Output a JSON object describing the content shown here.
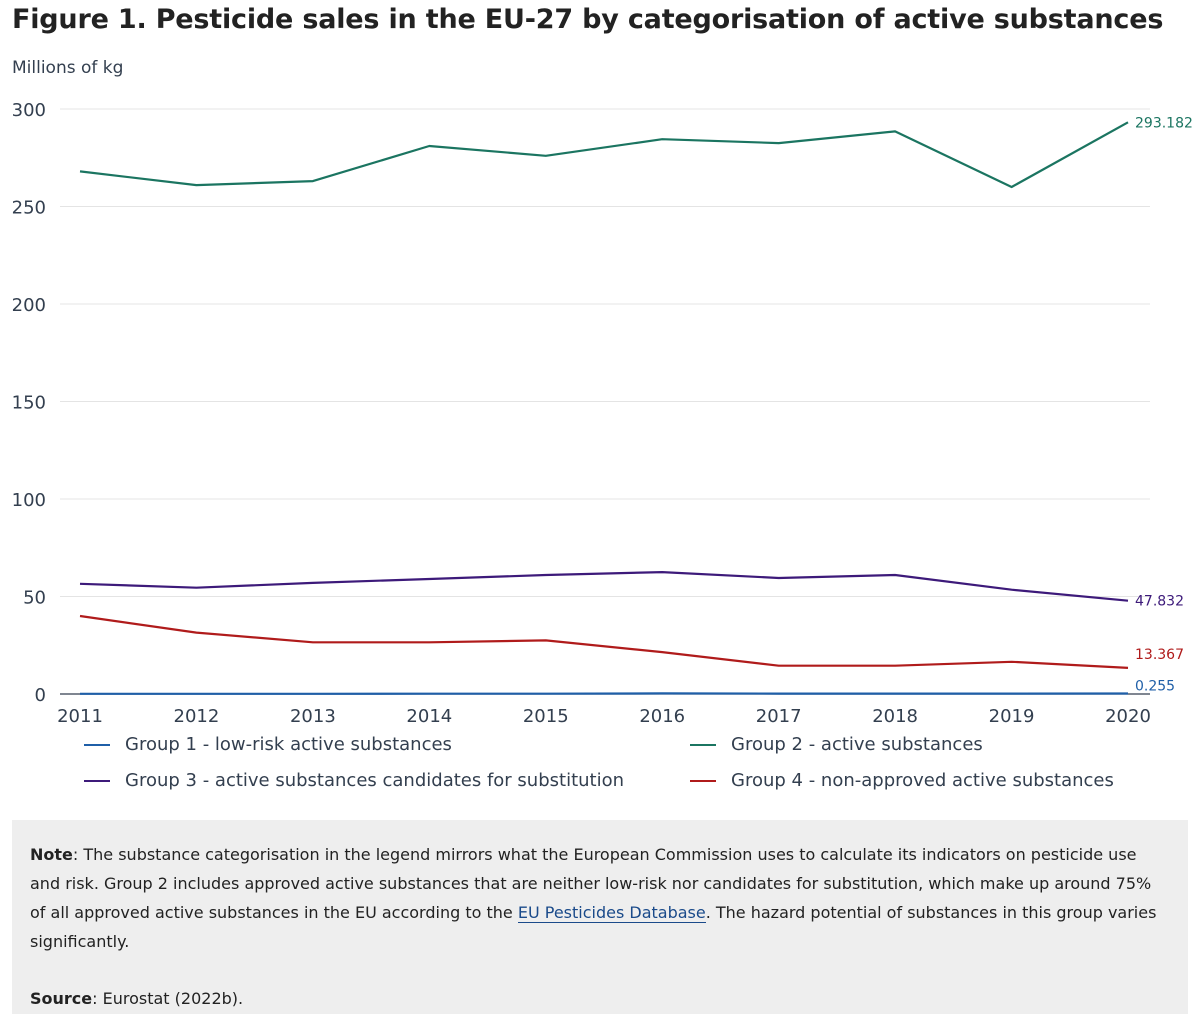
{
  "title": "Figure 1. Pesticide sales in the EU-27 by categorisation of active substances",
  "y_unit": "Millions of kg",
  "chart_data": {
    "type": "line",
    "title": "Figure 1. Pesticide sales in the EU-27 by categorisation of active substances",
    "ylabel": "Millions of kg",
    "xlabel": "",
    "x": [
      "2011",
      "2012",
      "2013",
      "2014",
      "2015",
      "2016",
      "2017",
      "2018",
      "2019",
      "2020"
    ],
    "ylim": [
      0,
      300
    ],
    "yticks": [
      0,
      50,
      100,
      150,
      200,
      250,
      300
    ],
    "grid": true,
    "legend_placement": "bottom",
    "series": [
      {
        "name": "Group 1 - low-risk active substances",
        "color": "#1f5fa8",
        "values": [
          0.1,
          0.1,
          0.1,
          0.15,
          0.15,
          0.3,
          0.2,
          0.2,
          0.2,
          0.255
        ],
        "end_label": "0.255"
      },
      {
        "name": "Group 2 - active substances",
        "color": "#1b7561",
        "values": [
          268,
          261,
          263,
          281,
          276,
          284.5,
          282.5,
          288.5,
          260,
          293.182
        ],
        "end_label": "293.182"
      },
      {
        "name": "Group 3 - active substances candidates for substitution",
        "color": "#3d1a7a",
        "values": [
          56.5,
          54.5,
          57,
          59,
          61,
          62.5,
          59.5,
          61,
          53.5,
          47.832
        ],
        "end_label": "47.832"
      },
      {
        "name": "Group 4 - non-approved active substances",
        "color": "#b01b1b",
        "values": [
          40,
          31.5,
          26.5,
          26.5,
          27.5,
          21.5,
          14.5,
          14.5,
          16.5,
          13.367
        ],
        "end_label": "13.367"
      }
    ]
  },
  "note": {
    "label": "Note",
    "text_before_link": ": The substance categorisation in the legend mirrors what the European Commission uses to calculate its indicators on pesticide use and risk. Group 2 includes approved active substances that are neither low-risk nor candidates for substitution, which make up around 75% of all approved active substances in the EU according to the ",
    "link_text": "EU Pesticides Database",
    "text_after_link": ". The hazard potential of substances in this group varies significantly."
  },
  "source": {
    "label": "Source",
    "text": ": Eurostat (2022b)."
  }
}
